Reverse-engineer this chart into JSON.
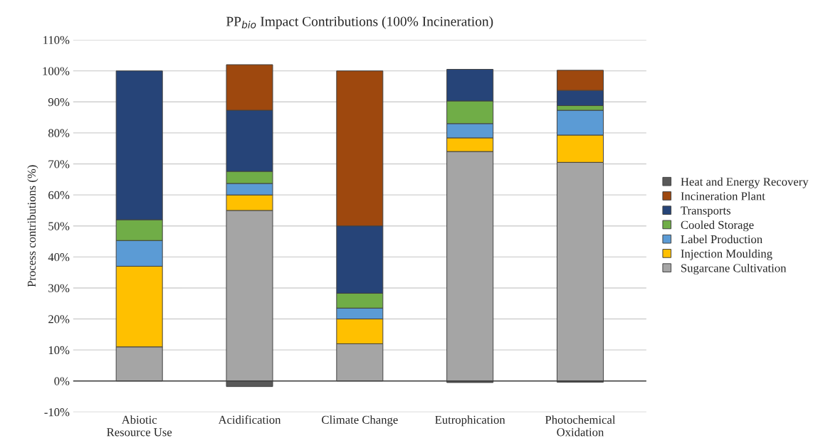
{
  "chart_data": {
    "type": "bar",
    "stacked": true,
    "title": "PP$_{bio}$ Impact Contributions (100% Incineration)",
    "ylabel": "Process contributions (%)",
    "categories": [
      "Abiotic\nResource Use",
      "Acidification",
      "Climate Change",
      "Eutrophication",
      "Photochemical\nOxidation"
    ],
    "series": [
      {
        "name": "Sugarcane Cultivation",
        "color": "#a5a5a5",
        "values": [
          11,
          55,
          12,
          74,
          70.5
        ]
      },
      {
        "name": "Injection Moulding",
        "color": "#ffc000",
        "values": [
          26,
          5,
          8,
          4.4,
          8.8
        ]
      },
      {
        "name": "Label Production",
        "color": "#5b9bd5",
        "values": [
          8.3,
          3.7,
          3.5,
          4.6,
          8
        ]
      },
      {
        "name": "Cooled Storage",
        "color": "#70ad47",
        "values": [
          6.7,
          3.9,
          4.8,
          7.3,
          1.5
        ]
      },
      {
        "name": "Transports",
        "color": "#264478",
        "values": [
          48,
          19.7,
          21.7,
          10.2,
          4.9
        ]
      },
      {
        "name": "Incineration Plant",
        "color": "#9e480e",
        "values": [
          null,
          14.7,
          50,
          null,
          6.5
        ]
      },
      {
        "name": "Heat and Energy Recovery",
        "color": "#595959",
        "values": [
          null,
          -1.8,
          null,
          -0.5,
          -0.4
        ]
      }
    ],
    "ylim": [
      -10,
      110
    ],
    "yticks": [
      {
        "value": -10,
        "label": "-10%"
      },
      {
        "value": 0,
        "label": "0%"
      },
      {
        "value": 10,
        "label": "10%"
      },
      {
        "value": 20,
        "label": "20%"
      },
      {
        "value": 30,
        "label": "30%"
      },
      {
        "value": 40,
        "label": "40%"
      },
      {
        "value": 50,
        "label": "50%"
      },
      {
        "value": 60,
        "label": "60%"
      },
      {
        "value": 70,
        "label": "70%"
      },
      {
        "value": 80,
        "label": "80%"
      },
      {
        "value": 90,
        "label": "90%"
      },
      {
        "value": 100,
        "label": "100%"
      },
      {
        "value": 110,
        "label": "110%"
      }
    ],
    "grid": "y",
    "legend": "right"
  }
}
